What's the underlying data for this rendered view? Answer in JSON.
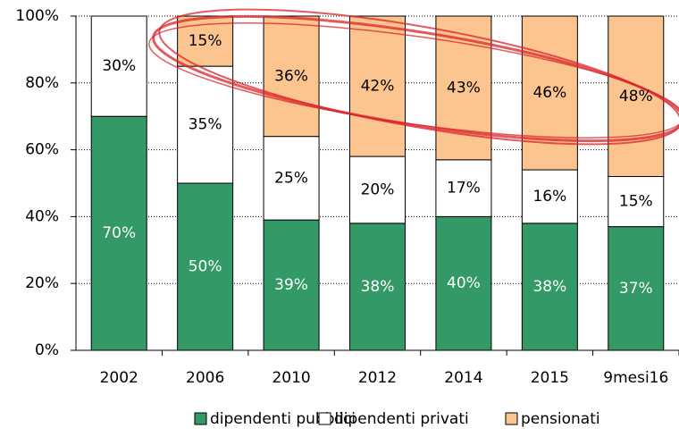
{
  "chart_data": {
    "type": "stacked_bar",
    "categories": [
      "2002",
      "2006",
      "2010",
      "2012",
      "2014",
      "2015",
      "9mesi16"
    ],
    "series": [
      {
        "name": "dipendenti pubblici",
        "color": "#339966",
        "values": [
          70,
          50,
          39,
          38,
          40,
          38,
          37
        ],
        "value_labels": [
          "70%",
          "50%",
          "39%",
          "38%",
          "40%",
          "38%",
          "37%"
        ]
      },
      {
        "name": "dipendenti privati",
        "color": "#ffffff",
        "values": [
          30,
          35,
          25,
          20,
          17,
          16,
          15
        ],
        "value_labels": [
          "30%",
          "35%",
          "25%",
          "20%",
          "17%",
          "16%",
          "15%"
        ]
      },
      {
        "name": "pensionati",
        "color": "#fcc58f",
        "values": [
          0,
          15,
          36,
          42,
          43,
          46,
          48
        ],
        "value_labels": [
          null,
          "15%",
          "36%",
          "42%",
          "43%",
          "46%",
          "48%"
        ]
      }
    ],
    "ylim": [
      0,
      100
    ],
    "yticks": [
      {
        "value": 0,
        "label": "0%"
      },
      {
        "value": 20,
        "label": "20%"
      },
      {
        "value": 40,
        "label": "40%"
      },
      {
        "value": 60,
        "label": "60%"
      },
      {
        "value": 80,
        "label": "80%"
      },
      {
        "value": 100,
        "label": "100%"
      }
    ],
    "grid": true
  }
}
